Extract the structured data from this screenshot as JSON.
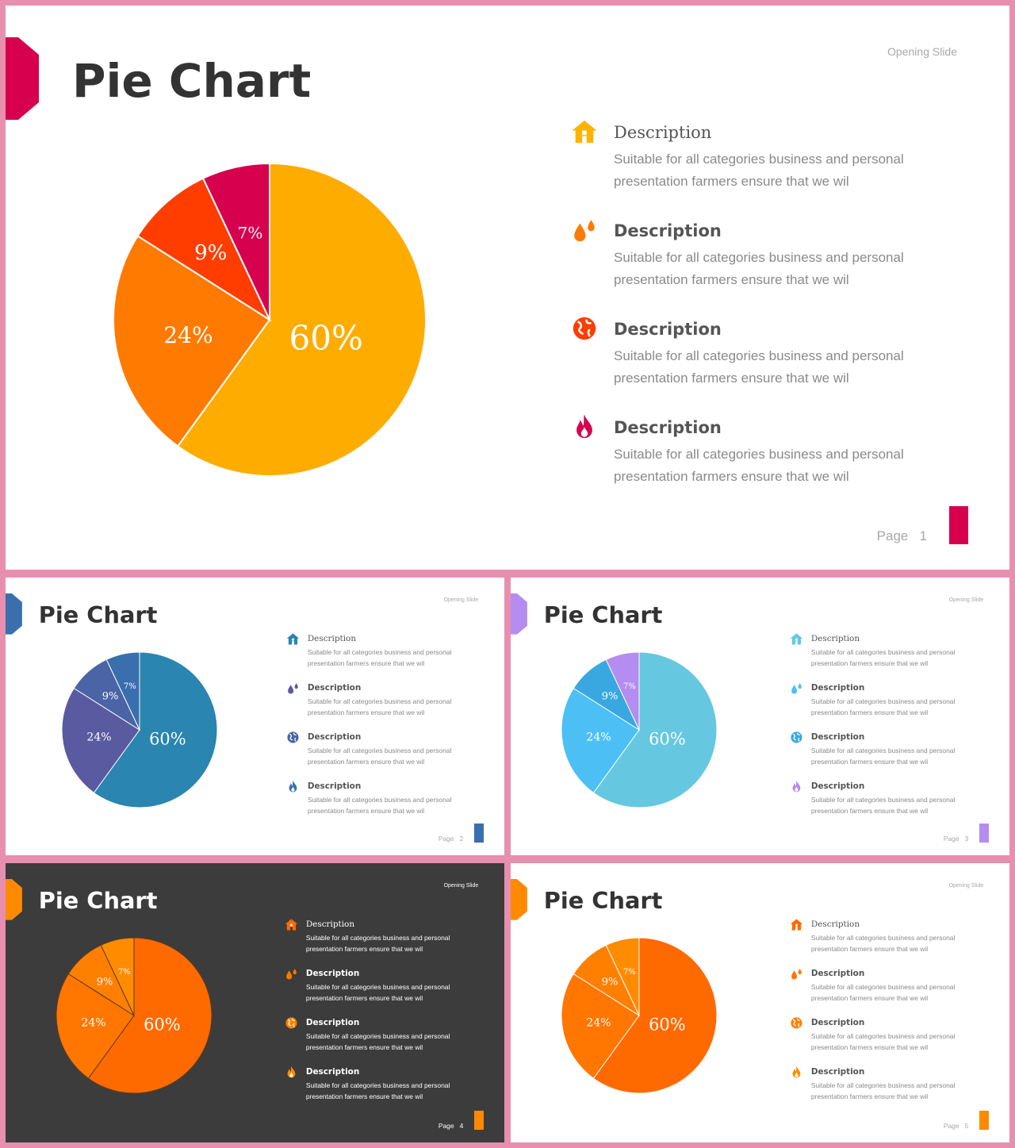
{
  "slides": [
    {
      "theme": "crimson-orange",
      "opening": "Opening Slide",
      "title": "Pie Chart",
      "colors": {
        "ribbon": "#d6004f",
        "page_bar": "#d6004f",
        "slices": [
          "#ffac00",
          "#ff7a00",
          "#ff3d00",
          "#d6004f"
        ],
        "separator": "#ffffff"
      },
      "chart_data": {
        "type": "pie",
        "categories": [
          "60%",
          "24%",
          "9%",
          "7%"
        ],
        "values": [
          60,
          24,
          9,
          7
        ],
        "title": "Pie Chart"
      },
      "items": [
        {
          "icon": "home-icon",
          "icon_color": "#ffb300",
          "title": "Description",
          "line1": "Suitable for all categories business and personal",
          "line2": "presentation farmers ensure that we wil"
        },
        {
          "icon": "droplets-icon",
          "icon_color": "#ff7a00",
          "title": "Description",
          "line1": "Suitable for all categories business and personal",
          "line2": "presentation farmers ensure that we wil"
        },
        {
          "icon": "globe-icon",
          "icon_color": "#ff3d00",
          "title": "Description",
          "line1": "Suitable for all categories business and personal",
          "line2": "presentation farmers ensure that we wil"
        },
        {
          "icon": "flame-icon",
          "icon_color": "#d6004f",
          "title": "Description",
          "line1": "Suitable for all categories business and personal",
          "line2": "presentation farmers ensure that we wil"
        }
      ],
      "page_word": "Page",
      "page_number": "1"
    },
    {
      "theme": "blue-purple",
      "opening": "Opening Slide",
      "title": "Pie Chart",
      "colors": {
        "ribbon": "#3a6fae",
        "page_bar": "#3a6fae",
        "slices": [
          "#2a85b0",
          "#5a5aa0",
          "#4a64a6",
          "#3a6fae"
        ],
        "separator": "#ffffff"
      },
      "chart_data": {
        "type": "pie",
        "categories": [
          "60%",
          "24%",
          "9%",
          "7%"
        ],
        "values": [
          60,
          24,
          9,
          7
        ],
        "title": "Pie Chart"
      },
      "items": [
        {
          "icon": "home-icon",
          "icon_color": "#2a85b0",
          "title": "Description",
          "line1": "Suitable for all categories business and personal",
          "line2": "presentation farmers ensure that we wil"
        },
        {
          "icon": "droplets-icon",
          "icon_color": "#5a5aa0",
          "title": "Description",
          "line1": "Suitable for all categories business and personal",
          "line2": "presentation farmers ensure that we wil"
        },
        {
          "icon": "globe-icon",
          "icon_color": "#4a64a6",
          "title": "Description",
          "line1": "Suitable for all categories business and personal",
          "line2": "presentation farmers ensure that we wil"
        },
        {
          "icon": "flame-icon",
          "icon_color": "#3a6fae",
          "title": "Description",
          "line1": "Suitable for all categories business and personal",
          "line2": "presentation farmers ensure that we wil"
        }
      ],
      "page_word": "Page",
      "page_number": "2"
    },
    {
      "theme": "cyan-lavender",
      "opening": "Opening Slide",
      "title": "Pie Chart",
      "colors": {
        "ribbon": "#b58cf0",
        "page_bar": "#b58cf0",
        "slices": [
          "#66c8e0",
          "#4cc0f5",
          "#3aa8e0",
          "#b58cf0"
        ],
        "separator": "#ffffff"
      },
      "chart_data": {
        "type": "pie",
        "categories": [
          "60%",
          "24%",
          "9%",
          "7%"
        ],
        "values": [
          60,
          24,
          9,
          7
        ],
        "title": "Pie Chart"
      },
      "items": [
        {
          "icon": "home-icon",
          "icon_color": "#66c8e0",
          "title": "Description",
          "line1": "Suitable for all categories business and personal",
          "line2": "presentation farmers ensure that we wil"
        },
        {
          "icon": "droplets-icon",
          "icon_color": "#4cc0f5",
          "title": "Description",
          "line1": "Suitable for all categories business and personal",
          "line2": "presentation farmers ensure that we wil"
        },
        {
          "icon": "globe-icon",
          "icon_color": "#3aa8e0",
          "title": "Description",
          "line1": "Suitable for all categories business and personal",
          "line2": "presentation farmers ensure that we wil"
        },
        {
          "icon": "flame-icon",
          "icon_color": "#b58cf0",
          "title": "Description",
          "line1": "Suitable for all categories business and personal",
          "line2": "presentation farmers ensure that we wil"
        }
      ],
      "page_word": "Page",
      "page_number": "3"
    },
    {
      "theme": "dark-orange",
      "opening": "Opening Slide",
      "title": "Pie Chart",
      "colors": {
        "ribbon": "#ff8a00",
        "page_bar": "#ff8a00",
        "slices": [
          "#ff6a00",
          "#ff7600",
          "#ff8000",
          "#ff8c00"
        ],
        "separator": "#5a3a20"
      },
      "chart_data": {
        "type": "pie",
        "categories": [
          "60%",
          "24%",
          "9%",
          "7%"
        ],
        "values": [
          60,
          24,
          9,
          7
        ],
        "title": "Pie Chart"
      },
      "items": [
        {
          "icon": "home-icon",
          "icon_color": "#ff6a00",
          "title": "Description",
          "line1": "Suitable for all categories business and personal",
          "line2": "presentation farmers ensure that we wil"
        },
        {
          "icon": "droplets-icon",
          "icon_color": "#ff7600",
          "title": "Description",
          "line1": "Suitable for all categories business and personal",
          "line2": "presentation farmers ensure that we wil"
        },
        {
          "icon": "globe-icon",
          "icon_color": "#ff8000",
          "title": "Description",
          "line1": "Suitable for all categories business and personal",
          "line2": "presentation farmers ensure that we wil"
        },
        {
          "icon": "flame-icon",
          "icon_color": "#ff8c00",
          "title": "Description",
          "line1": "Suitable for all categories business and personal",
          "line2": "presentation farmers ensure that we wil"
        }
      ],
      "page_word": "Page",
      "page_number": "4"
    },
    {
      "theme": "orange",
      "opening": "Opening Slide",
      "title": "Pie Chart",
      "colors": {
        "ribbon": "#ff8a00",
        "page_bar": "#ff8a00",
        "slices": [
          "#ff6a00",
          "#ff7600",
          "#ff8000",
          "#ff8c00"
        ],
        "separator": "#ffffff"
      },
      "chart_data": {
        "type": "pie",
        "categories": [
          "60%",
          "24%",
          "9%",
          "7%"
        ],
        "values": [
          60,
          24,
          9,
          7
        ],
        "title": "Pie Chart"
      },
      "items": [
        {
          "icon": "home-icon",
          "icon_color": "#ff6a00",
          "title": "Description",
          "line1": "Suitable for all categories business and personal",
          "line2": "presentation farmers ensure that we wil"
        },
        {
          "icon": "droplets-icon",
          "icon_color": "#ff7600",
          "title": "Description",
          "line1": "Suitable for all categories business and personal",
          "line2": "presentation farmers ensure that we wil"
        },
        {
          "icon": "globe-icon",
          "icon_color": "#ff8000",
          "title": "Description",
          "line1": "Suitable for all categories business and personal",
          "line2": "presentation farmers ensure that we wil"
        },
        {
          "icon": "flame-icon",
          "icon_color": "#ff8c00",
          "title": "Description",
          "line1": "Suitable for all categories business and personal",
          "line2": "presentation farmers ensure that we wil"
        }
      ],
      "page_word": "Page",
      "page_number": "5"
    }
  ]
}
